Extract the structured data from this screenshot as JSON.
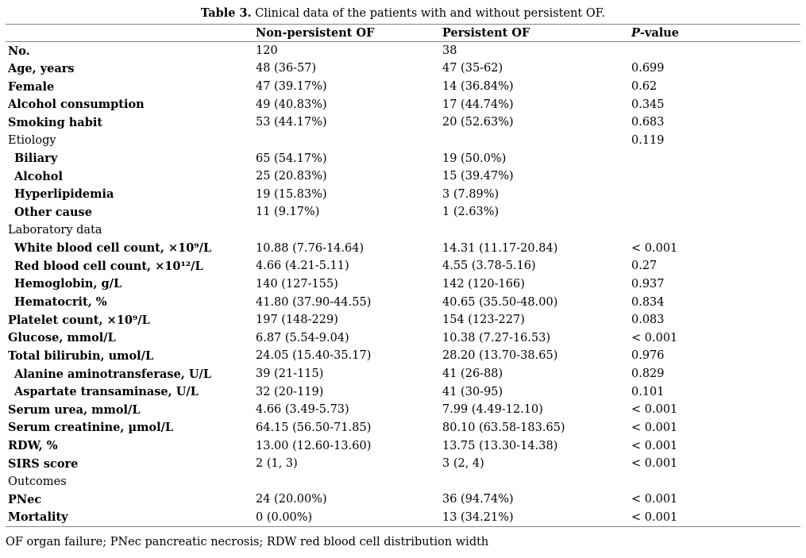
{
  "title": {
    "prefix": "Table 3.",
    "rest": " Clinical data of the patients with and without persistent OF."
  },
  "table": {
    "columns": {
      "label": "",
      "non_persistent": "Non-persistent OF",
      "persistent": "Persistent OF",
      "p_prefix": "P",
      "p_suffix": "-value"
    },
    "rows": [
      {
        "label": "No.",
        "section": false,
        "indent": false,
        "non_persistent": "120",
        "persistent": "38",
        "p": ""
      },
      {
        "label": "Age, years",
        "section": false,
        "indent": false,
        "non_persistent": "48 (36-57)",
        "persistent": "47 (35-62)",
        "p": "0.699"
      },
      {
        "label": "Female",
        "section": false,
        "indent": false,
        "non_persistent": "47 (39.17%)",
        "persistent": "14 (36.84%)",
        "p": "0.62"
      },
      {
        "label": "Alcohol consumption",
        "section": false,
        "indent": false,
        "non_persistent": "49 (40.83%)",
        "persistent": "17 (44.74%)",
        "p": "0.345"
      },
      {
        "label": "Smoking habit",
        "section": false,
        "indent": false,
        "non_persistent": "53 (44.17%)",
        "persistent": "20 (52.63%)",
        "p": "0.683"
      },
      {
        "label": "Etiology",
        "section": true,
        "indent": false,
        "non_persistent": "",
        "persistent": "",
        "p": "0.119"
      },
      {
        "label": "Biliary",
        "section": false,
        "indent": true,
        "non_persistent": "65 (54.17%)",
        "persistent": "19 (50.0%)",
        "p": ""
      },
      {
        "label": "Alcohol",
        "section": false,
        "indent": true,
        "non_persistent": "25 (20.83%)",
        "persistent": "15 (39.47%)",
        "p": ""
      },
      {
        "label": "Hyperlipidemia",
        "section": false,
        "indent": true,
        "non_persistent": "19 (15.83%)",
        "persistent": "3 (7.89%)",
        "p": ""
      },
      {
        "label": "Other cause",
        "section": false,
        "indent": true,
        "non_persistent": "11 (9.17%)",
        "persistent": "1 (2.63%)",
        "p": ""
      },
      {
        "label": "Laboratory data",
        "section": true,
        "indent": false,
        "non_persistent": "",
        "persistent": "",
        "p": ""
      },
      {
        "label": "White blood cell count, ×10⁹/L",
        "section": false,
        "indent": true,
        "non_persistent": "10.88 (7.76-14.64)",
        "persistent": "14.31 (11.17-20.84)",
        "p": "< 0.001"
      },
      {
        "label": "Red blood cell count, ×10¹²/L",
        "section": false,
        "indent": true,
        "non_persistent": "4.66 (4.21-5.11)",
        "persistent": "4.55 (3.78-5.16)",
        "p": "0.27"
      },
      {
        "label": "Hemoglobin, g/L",
        "section": false,
        "indent": true,
        "non_persistent": "140 (127-155)",
        "persistent": "142 (120-166)",
        "p": "0.937"
      },
      {
        "label": "Hematocrit, %",
        "section": false,
        "indent": true,
        "non_persistent": "41.80 (37.90-44.55)",
        "persistent": "40.65 (35.50-48.00)",
        "p": "0.834"
      },
      {
        "label": "Platelet count, ×10⁹/L",
        "section": false,
        "indent": false,
        "non_persistent": "197 (148-229)",
        "persistent": "154 (123-227)",
        "p": "0.083"
      },
      {
        "label": "Glucose, mmol/L",
        "section": false,
        "indent": false,
        "non_persistent": "6.87 (5.54-9.04)",
        "persistent": "10.38 (7.27-16.53)",
        "p": "< 0.001"
      },
      {
        "label": "Total bilirubin, umol/L",
        "section": false,
        "indent": false,
        "non_persistent": "24.05 (15.40-35.17)",
        "persistent": "28.20 (13.70-38.65)",
        "p": "0.976"
      },
      {
        "label": "Alanine aminotransferase, U/L",
        "section": false,
        "indent": true,
        "non_persistent": "39 (21-115)",
        "persistent": "41 (26-88)",
        "p": "0.829"
      },
      {
        "label": "Aspartate transaminase, U/L",
        "section": false,
        "indent": true,
        "non_persistent": "32 (20-119)",
        "persistent": "41 (30-95)",
        "p": "0.101"
      },
      {
        "label": "Serum urea, mmol/L",
        "section": false,
        "indent": false,
        "non_persistent": "4.66 (3.49-5.73)",
        "persistent": "7.99 (4.49-12.10)",
        "p": "< 0.001"
      },
      {
        "label": "Serum creatinine, µmol/L",
        "section": false,
        "indent": false,
        "non_persistent": "64.15 (56.50-71.85)",
        "persistent": "80.10 (63.58-183.65)",
        "p": "< 0.001"
      },
      {
        "label": "RDW, %",
        "section": false,
        "indent": false,
        "non_persistent": "13.00 (12.60-13.60)",
        "persistent": "13.75 (13.30-14.38)",
        "p": "< 0.001"
      },
      {
        "label": "SIRS score",
        "section": false,
        "indent": false,
        "non_persistent": "2 (1, 3)",
        "persistent": "3 (2, 4)",
        "p": "< 0.001"
      },
      {
        "label": "Outcomes",
        "section": true,
        "indent": false,
        "non_persistent": "",
        "persistent": "",
        "p": ""
      },
      {
        "label": "PNec",
        "section": false,
        "indent": false,
        "non_persistent": "24 (20.00%)",
        "persistent": "36 (94.74%)",
        "p": "< 0.001"
      },
      {
        "label": "Mortality",
        "section": false,
        "indent": false,
        "non_persistent": "0 (0.00%)",
        "persistent": "13 (34.21%)",
        "p": "< 0.001"
      }
    ]
  },
  "footnote": "OF organ failure; PNec pancreatic necrosis; RDW red blood cell distribution width",
  "colors": {
    "background": "#ffffff",
    "text": "#000000",
    "rule": "#848484"
  }
}
